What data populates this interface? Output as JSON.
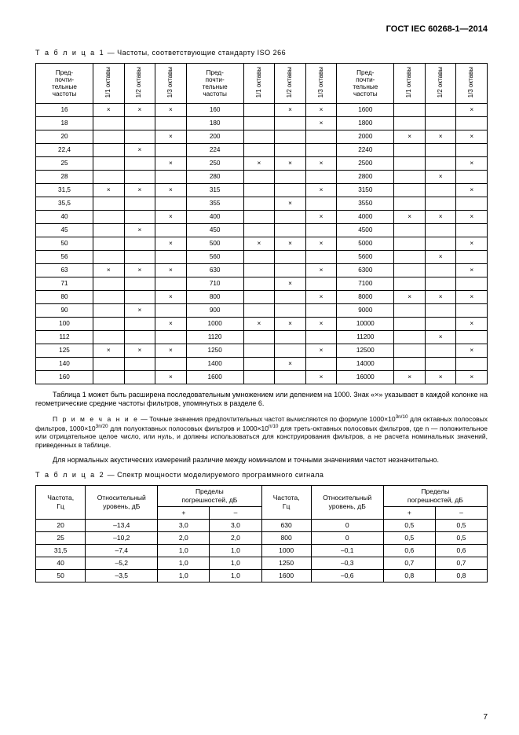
{
  "header": "ГОСТ IEC 60268-1—2014",
  "table1": {
    "caption_prefix": "Т а б л и ц а  1",
    "caption_rest": " — Частоты, соответствующие стандарту ISO 266",
    "col_freq": "Пред-\nпочти-\nтельные\nчастоты",
    "col_11": "1/1 октавы",
    "col_12": "1/2 октавы",
    "col_13": "1/3 октавы",
    "rows": [
      {
        "f1": "16",
        "a1": "×",
        "b1": "×",
        "c1": "×",
        "f2": "160",
        "a2": "",
        "b2": "×",
        "c2": "×",
        "f3": "1600",
        "a3": "",
        "b3": "",
        "c3": "×"
      },
      {
        "f1": "18",
        "a1": "",
        "b1": "",
        "c1": "",
        "f2": "180",
        "a2": "",
        "b2": "",
        "c2": "×",
        "f3": "1800",
        "a3": "",
        "b3": "",
        "c3": ""
      },
      {
        "f1": "20",
        "a1": "",
        "b1": "",
        "c1": "×",
        "f2": "200",
        "a2": "",
        "b2": "",
        "c2": "",
        "f3": "2000",
        "a3": "×",
        "b3": "×",
        "c3": "×"
      },
      {
        "f1": "22,4",
        "a1": "",
        "b1": "×",
        "c1": "",
        "f2": "224",
        "a2": "",
        "b2": "",
        "c2": "",
        "f3": "2240",
        "a3": "",
        "b3": "",
        "c3": ""
      },
      {
        "f1": "25",
        "a1": "",
        "b1": "",
        "c1": "×",
        "f2": "250",
        "a2": "×",
        "b2": "×",
        "c2": "×",
        "f3": "2500",
        "a3": "",
        "b3": "",
        "c3": "×"
      },
      {
        "f1": "28",
        "a1": "",
        "b1": "",
        "c1": "",
        "f2": "280",
        "a2": "",
        "b2": "",
        "c2": "",
        "f3": "2800",
        "a3": "",
        "b3": "×",
        "c3": ""
      },
      {
        "f1": "31,5",
        "a1": "×",
        "b1": "×",
        "c1": "×",
        "f2": "315",
        "a2": "",
        "b2": "",
        "c2": "×",
        "f3": "3150",
        "a3": "",
        "b3": "",
        "c3": "×"
      },
      {
        "f1": "35,5",
        "a1": "",
        "b1": "",
        "c1": "",
        "f2": "355",
        "a2": "",
        "b2": "×",
        "c2": "",
        "f3": "3550",
        "a3": "",
        "b3": "",
        "c3": ""
      },
      {
        "f1": "40",
        "a1": "",
        "b1": "",
        "c1": "×",
        "f2": "400",
        "a2": "",
        "b2": "",
        "c2": "×",
        "f3": "4000",
        "a3": "×",
        "b3": "×",
        "c3": "×"
      },
      {
        "f1": "45",
        "a1": "",
        "b1": "×",
        "c1": "",
        "f2": "450",
        "a2": "",
        "b2": "",
        "c2": "",
        "f3": "4500",
        "a3": "",
        "b3": "",
        "c3": ""
      },
      {
        "f1": "50",
        "a1": "",
        "b1": "",
        "c1": "×",
        "f2": "500",
        "a2": "×",
        "b2": "×",
        "c2": "×",
        "f3": "5000",
        "a3": "",
        "b3": "",
        "c3": "×"
      },
      {
        "f1": "56",
        "a1": "",
        "b1": "",
        "c1": "",
        "f2": "560",
        "a2": "",
        "b2": "",
        "c2": "",
        "f3": "5600",
        "a3": "",
        "b3": "×",
        "c3": ""
      },
      {
        "f1": "63",
        "a1": "×",
        "b1": "×",
        "c1": "×",
        "f2": "630",
        "a2": "",
        "b2": "",
        "c2": "×",
        "f3": "6300",
        "a3": "",
        "b3": "",
        "c3": "×"
      },
      {
        "f1": "71",
        "a1": "",
        "b1": "",
        "c1": "",
        "f2": "710",
        "a2": "",
        "b2": "×",
        "c2": "",
        "f3": "7100",
        "a3": "",
        "b3": "",
        "c3": ""
      },
      {
        "f1": "80",
        "a1": "",
        "b1": "",
        "c1": "×",
        "f2": "800",
        "a2": "",
        "b2": "",
        "c2": "×",
        "f3": "8000",
        "a3": "×",
        "b3": "×",
        "c3": "×"
      },
      {
        "f1": "90",
        "a1": "",
        "b1": "×",
        "c1": "",
        "f2": "900",
        "a2": "",
        "b2": "",
        "c2": "",
        "f3": "9000",
        "a3": "",
        "b3": "",
        "c3": ""
      },
      {
        "f1": "100",
        "a1": "",
        "b1": "",
        "c1": "×",
        "f2": "1000",
        "a2": "×",
        "b2": "×",
        "c2": "×",
        "f3": "10000",
        "a3": "",
        "b3": "",
        "c3": "×"
      },
      {
        "f1": "112",
        "a1": "",
        "b1": "",
        "c1": "",
        "f2": "1120",
        "a2": "",
        "b2": "",
        "c2": "",
        "f3": "11200",
        "a3": "",
        "b3": "×",
        "c3": ""
      },
      {
        "f1": "125",
        "a1": "×",
        "b1": "×",
        "c1": "×",
        "f2": "1250",
        "a2": "",
        "b2": "",
        "c2": "×",
        "f3": "12500",
        "a3": "",
        "b3": "",
        "c3": "×"
      },
      {
        "f1": "140",
        "a1": "",
        "b1": "",
        "c1": "",
        "f2": "1400",
        "a2": "",
        "b2": "×",
        "c2": "",
        "f3": "14000",
        "a3": "",
        "b3": "",
        "c3": ""
      },
      {
        "f1": "160",
        "a1": "",
        "b1": "",
        "c1": "×",
        "f2": "1600",
        "a2": "",
        "b2": "",
        "c2": "×",
        "f3": "16000",
        "a3": "×",
        "b3": "×",
        "c3": "×"
      }
    ]
  },
  "para1": "Таблица 1 может быть расширена последовательным умножением или делением на 1000. Знак «×» указывает в каждой колонке на геометрические средние частоты фильтров, упомянутых в разделе 6.",
  "note_prefix": "П р и м е ч а н и е",
  "note_body": "  — Точные значения предпочтительных частот вычисляются по формуле 1000×10",
  "note_body2": " для октавных полосовых фильтров, 1000×10",
  "note_body3": " для полуоктавных полосовых фильтров и 1000×10",
  "note_body4": " для треть-октавных полосовых фильтров, где n — положительное или отрицательное целое число, или нуль, и должны использоваться для конструирования фильтров, а не расчета номинальных значений, приведенных в таблице.",
  "sup1": "3n/10",
  "sup2": "3n/20",
  "sup3": "n/10",
  "para2": "Для нормальных акустических измерений различие между номиналом и точными значениями частот незначительно.",
  "table2": {
    "caption_prefix": "Т а б л и ц а  2",
    "caption_rest": " — Спектр мощности моделируемого программного сигнала",
    "h_freq": "Частота,\nГц",
    "h_level": "Относительный\nуровень, дБ",
    "h_tol": "Пределы\nпогрешностей, дБ",
    "h_plus": "+",
    "h_minus": "–",
    "rows": [
      {
        "f1": "20",
        "l1": "–13,4",
        "p1": "3,0",
        "m1": "3,0",
        "f2": "630",
        "l2": "0",
        "p2": "0,5",
        "m2": "0,5"
      },
      {
        "f1": "25",
        "l1": "–10,2",
        "p1": "2,0",
        "m1": "2,0",
        "f2": "800",
        "l2": "0",
        "p2": "0,5",
        "m2": "0,5"
      },
      {
        "f1": "31,5",
        "l1": "–7,4",
        "p1": "1,0",
        "m1": "1,0",
        "f2": "1000",
        "l2": "–0,1",
        "p2": "0,6",
        "m2": "0,6"
      },
      {
        "f1": "40",
        "l1": "–5,2",
        "p1": "1,0",
        "m1": "1,0",
        "f2": "1250",
        "l2": "–0,3",
        "p2": "0,7",
        "m2": "0,7"
      },
      {
        "f1": "50",
        "l1": "–3,5",
        "p1": "1,0",
        "m1": "1,0",
        "f2": "1600",
        "l2": "–0,6",
        "p2": "0,8",
        "m2": "0,8"
      }
    ]
  },
  "page_number": "7"
}
